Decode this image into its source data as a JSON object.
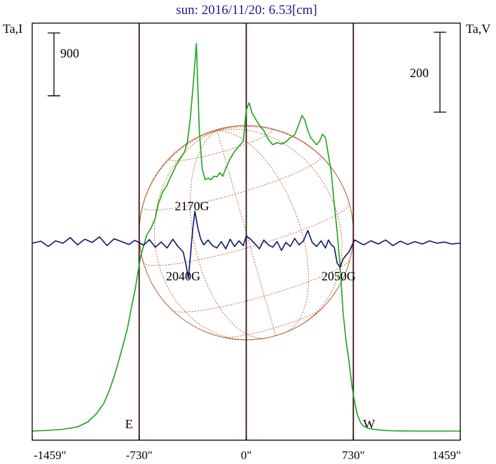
{
  "chart_data": {
    "type": "line",
    "title": "sun: 2016/11/20: 6.53[cm]",
    "left_axis_label": "Ta,I",
    "right_axis_label": "Ta,V",
    "x_unit": "arcsec",
    "xlim": [
      -1459,
      1459
    ],
    "x_ticks": [
      {
        "value": -1459,
        "label": "-1459\""
      },
      {
        "value": -730,
        "label": "-730\""
      },
      {
        "value": 0,
        "label": "0\""
      },
      {
        "value": 730,
        "label": "730\""
      },
      {
        "value": 1459,
        "label": "1459\""
      }
    ],
    "scale_bars": [
      {
        "axis": "left",
        "label": "900",
        "value": 900
      },
      {
        "axis": "right",
        "label": "200",
        "value": 200
      }
    ],
    "vertical_lines": [
      {
        "x": -730,
        "label": "E"
      },
      {
        "x": 0,
        "label": ""
      },
      {
        "x": 730,
        "label": "W"
      }
    ],
    "grid": false,
    "disk_overlay": {
      "radius_arcsec": 730,
      "meridian_tilt_deg": 16
    },
    "series": [
      {
        "name": "I",
        "axis": "left",
        "color": "#1aa31a",
        "x": [
          -1459,
          -1350,
          -1250,
          -1150,
          -1080,
          -1020,
          -970,
          -930,
          -890,
          -850,
          -810,
          -780,
          -760,
          -740,
          -720,
          -700,
          -680,
          -650,
          -620,
          -600,
          -570,
          -540,
          -520,
          -500,
          -480,
          -450,
          -420,
          -400,
          -380,
          -360,
          -340,
          -320,
          -300,
          -280,
          -260,
          -240,
          -220,
          -200,
          -180,
          -160,
          -140,
          -110,
          -80,
          -50,
          -20,
          0,
          20,
          40,
          60,
          90,
          120,
          150,
          180,
          210,
          240,
          270,
          300,
          330,
          360,
          380,
          400,
          420,
          440,
          460,
          480,
          500,
          520,
          540,
          560,
          580,
          600,
          620,
          640,
          660,
          680,
          700,
          720,
          740,
          760,
          780,
          800,
          830,
          870,
          920,
          980,
          1050,
          1150,
          1250,
          1350,
          1459
        ],
        "values": [
          0,
          10,
          25,
          60,
          130,
          250,
          400,
          600,
          850,
          1150,
          1470,
          1800,
          2000,
          2250,
          2500,
          2650,
          2800,
          2900,
          3050,
          3250,
          3420,
          3520,
          3620,
          3700,
          3800,
          3900,
          4000,
          4150,
          4500,
          5000,
          5550,
          4300,
          3750,
          3600,
          3620,
          3600,
          3650,
          3640,
          3700,
          3650,
          3760,
          3900,
          4000,
          4080,
          4150,
          4600,
          4700,
          4550,
          4480,
          4380,
          4300,
          4180,
          4100,
          4130,
          4110,
          4140,
          4200,
          4240,
          4400,
          4520,
          4450,
          4300,
          4200,
          4150,
          4100,
          4150,
          4250,
          4200,
          3950,
          3700,
          3250,
          2850,
          2350,
          1700,
          1300,
          1000,
          650,
          400,
          220,
          120,
          70,
          40,
          25,
          12,
          5,
          2,
          0,
          0,
          0,
          0
        ]
      },
      {
        "name": "V",
        "axis": "right",
        "color": "#0b1470",
        "x": [
          -1459,
          -1400,
          -1350,
          -1300,
          -1250,
          -1200,
          -1150,
          -1100,
          -1050,
          -1000,
          -950,
          -900,
          -850,
          -800,
          -760,
          -730,
          -700,
          -660,
          -620,
          -580,
          -540,
          -500,
          -470,
          -450,
          -430,
          -410,
          -395,
          -380,
          -365,
          -350,
          -330,
          -310,
          -290,
          -260,
          -230,
          -200,
          -170,
          -140,
          -110,
          -80,
          -50,
          -20,
          0,
          30,
          60,
          90,
          120,
          150,
          180,
          210,
          240,
          270,
          300,
          330,
          360,
          390,
          420,
          450,
          480,
          510,
          540,
          560,
          580,
          600,
          620,
          640,
          660,
          680,
          700,
          720,
          740,
          770,
          800,
          850,
          900,
          950,
          1000,
          1050,
          1100,
          1150,
          1200,
          1250,
          1300,
          1350,
          1400,
          1459
        ],
        "values": [
          0,
          5,
          -8,
          6,
          0,
          14,
          -4,
          10,
          2,
          16,
          -6,
          11,
          4,
          -3,
          7,
          2,
          -5,
          9,
          -10,
          3,
          -12,
          10,
          -6,
          -14,
          -22,
          -55,
          -88,
          -30,
          35,
          80,
          38,
          10,
          -4,
          8,
          -6,
          -12,
          4,
          -14,
          10,
          -8,
          6,
          -6,
          18,
          10,
          -2,
          -14,
          8,
          -4,
          -10,
          4,
          -18,
          2,
          -8,
          12,
          -4,
          6,
          32,
          2,
          -8,
          6,
          -12,
          8,
          -4,
          -10,
          -50,
          -60,
          -40,
          -30,
          -22,
          -6,
          8,
          2,
          -4,
          6,
          -2,
          8,
          -6,
          5,
          -3,
          4,
          -2,
          6,
          0,
          3,
          -2,
          0
        ]
      }
    ],
    "annotations": [
      {
        "text": "2170G",
        "x": -370,
        "kind": "positive-peak"
      },
      {
        "text": "2040G",
        "x": -430,
        "kind": "negative-peak"
      },
      {
        "text": "2050G",
        "x": 630,
        "kind": "negative-peak"
      }
    ],
    "colors": {
      "disk": "#b5602f",
      "frame": "#000000",
      "markers": "#3a1010",
      "title": "#1a1a8c"
    }
  }
}
